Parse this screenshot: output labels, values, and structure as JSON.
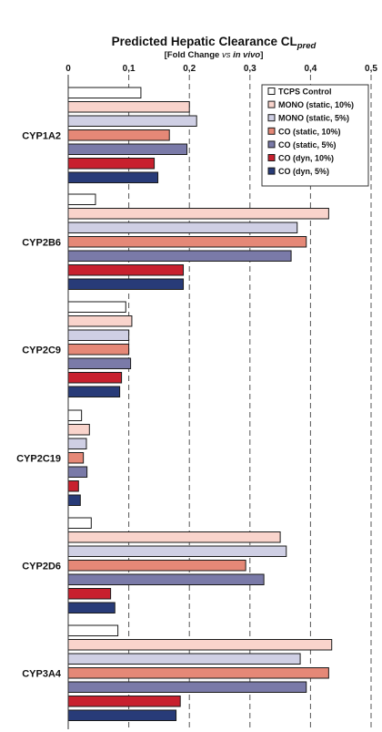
{
  "chart_data": {
    "type": "bar",
    "orientation": "horizontal",
    "title_main": "Predicted Hepatic Clearance CL",
    "title_sub_italic": "pred",
    "subtitle_pre": "[Fold Change ",
    "subtitle_vs": "vs",
    "subtitle_italic": "in vivo",
    "subtitle_post": "]",
    "xlim": [
      0,
      0.5
    ],
    "xticks": [
      "0",
      "0,1",
      "0,2",
      "0,3",
      "0,4",
      "0,5"
    ],
    "xtick_values": [
      0,
      0.1,
      0.2,
      0.3,
      0.4,
      0.5
    ],
    "grid": "vertical dashed",
    "legend_position": "top-right",
    "categories": [
      "CYP1A2",
      "CYP2B6",
      "CYP2C9",
      "CYP2C19",
      "CYP2D6",
      "CYP3A4"
    ],
    "series": [
      {
        "name": "TCPS Control",
        "color": "#ffffff",
        "values": [
          0.12,
          0.045,
          0.095,
          0.022,
          0.038,
          0.082
        ]
      },
      {
        "name": "MONO (static, 10%)",
        "color": "#f9d4cc",
        "values": [
          0.2,
          0.43,
          0.105,
          0.035,
          0.35,
          0.435
        ]
      },
      {
        "name": "MONO (static, 5%)",
        "color": "#cfcfe4",
        "values": [
          0.212,
          0.378,
          0.1,
          0.03,
          0.36,
          0.383
        ]
      },
      {
        "name": "CO (static, 10%)",
        "color": "#e58877",
        "values": [
          0.167,
          0.393,
          0.1,
          0.025,
          0.293,
          0.43
        ]
      },
      {
        "name": "CO (static, 5%)",
        "color": "#7a7aa8",
        "values": [
          0.196,
          0.368,
          0.103,
          0.031,
          0.323,
          0.393
        ]
      },
      {
        "name": "CO (dyn, 10%)",
        "color": "#c8202e",
        "values": [
          0.142,
          0.19,
          0.088,
          0.017,
          0.07,
          0.185
        ]
      },
      {
        "name": "CO (dyn, 5%)",
        "color": "#283b78",
        "values": [
          0.148,
          0.19,
          0.085,
          0.02,
          0.077,
          0.178
        ]
      }
    ]
  }
}
